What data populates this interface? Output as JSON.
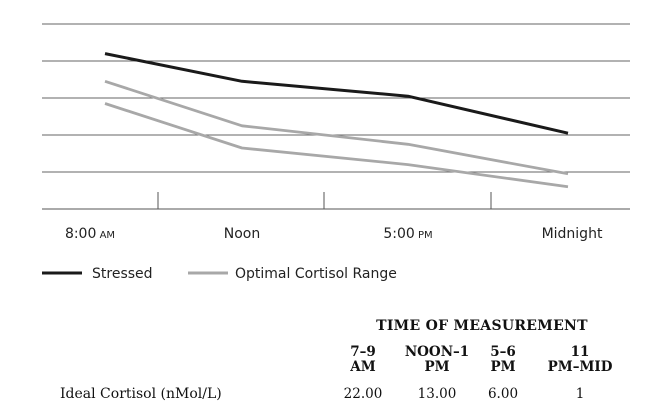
{
  "chart_data": {
    "type": "line",
    "categories": [
      "8:00 AM",
      "Noon",
      "5:00 PM",
      "Midnight"
    ],
    "tick_labels": [
      {
        "main": "8:00",
        "suffix": "AM"
      },
      {
        "main": "Noon",
        "suffix": ""
      },
      {
        "main": "5:00",
        "suffix": "PM"
      },
      {
        "main": "Midnight",
        "suffix": ""
      }
    ],
    "ylim": [
      0,
      5
    ],
    "grid": true,
    "legend_position": "bottom-left",
    "series": [
      {
        "name": "Stressed",
        "color": "#1a1a1a",
        "values": [
          4.2,
          3.45,
          3.05,
          2.05
        ]
      },
      {
        "name": "Optimal Cortisol Range",
        "color": "#a8a8a8",
        "values": [
          3.45,
          2.25,
          1.75,
          0.95
        ]
      },
      {
        "name": "",
        "color": "#a8a8a8",
        "values": [
          2.85,
          1.65,
          1.2,
          0.6
        ]
      }
    ]
  },
  "table": {
    "title": "TIME OF MEASUREMENT",
    "columns": [
      {
        "line1": "7–9",
        "line2": "AM"
      },
      {
        "line1": "NOON–1",
        "line2": "PM"
      },
      {
        "line1": "5–6",
        "line2": "PM"
      },
      {
        "line1": "11",
        "line2": "PM–MID"
      }
    ],
    "rows": [
      {
        "label": "Ideal Cortisol (nMol/L)",
        "values": [
          "22.00",
          "13.00",
          "6.00",
          "1"
        ]
      }
    ]
  }
}
